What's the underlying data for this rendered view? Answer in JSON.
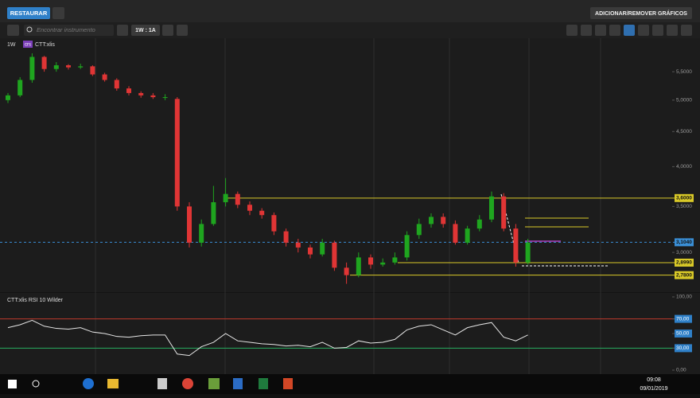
{
  "toolbar": {
    "restore": "RESTAURAR",
    "add_remove": "ADICIONAR/REMOVER GRÁFICOS",
    "search_placeholder": "Encontrar instrumento",
    "period": "1W : 1A"
  },
  "chart_data": [
    {
      "type": "candlestick",
      "interval": "1W",
      "instrument": "CTT:xlis",
      "badge": "crs",
      "open": [
        5.0,
        5.08,
        5.35,
        5.78,
        5.55,
        5.62,
        5.58,
        5.6,
        5.45,
        5.35,
        5.2,
        5.12,
        5.08,
        5.05,
        5.02,
        3.5,
        3.1,
        3.3,
        3.55,
        3.65,
        3.52,
        3.45,
        3.4,
        3.22,
        3.1,
        3.05,
        2.98,
        3.1,
        2.85,
        2.78,
        2.95,
        2.88,
        2.9,
        2.95,
        3.18,
        3.3,
        3.38,
        3.3,
        3.1,
        3.25,
        3.35,
        3.62,
        3.25,
        2.9
      ],
      "high": [
        5.12,
        5.4,
        5.85,
        5.8,
        5.68,
        5.64,
        5.65,
        5.62,
        5.48,
        5.38,
        5.24,
        5.15,
        5.12,
        5.1,
        5.05,
        3.55,
        3.35,
        3.75,
        3.85,
        3.68,
        3.56,
        3.48,
        3.43,
        3.25,
        3.14,
        3.08,
        3.14,
        3.12,
        2.9,
        3.0,
        2.98,
        2.94,
        3.0,
        3.22,
        3.36,
        3.42,
        3.42,
        3.34,
        3.28,
        3.4,
        3.68,
        3.66,
        3.3,
        3.14
      ],
      "low": [
        4.95,
        5.05,
        5.3,
        5.5,
        5.5,
        5.54,
        5.55,
        5.42,
        5.32,
        5.16,
        5.08,
        5.04,
        5.02,
        5.0,
        3.45,
        3.05,
        3.06,
        3.28,
        3.5,
        3.48,
        3.4,
        3.36,
        3.18,
        3.06,
        3.0,
        2.94,
        2.96,
        2.82,
        2.7,
        2.76,
        2.84,
        2.86,
        2.88,
        2.92,
        3.14,
        3.26,
        3.26,
        3.08,
        3.08,
        3.22,
        3.32,
        3.22,
        2.86,
        2.88
      ],
      "close": [
        5.08,
        5.35,
        5.78,
        5.55,
        5.62,
        5.58,
        5.6,
        5.45,
        5.35,
        5.2,
        5.12,
        5.08,
        5.05,
        5.05,
        3.5,
        3.1,
        3.3,
        3.55,
        3.65,
        3.52,
        3.45,
        3.4,
        3.22,
        3.1,
        3.05,
        2.98,
        3.1,
        2.85,
        2.78,
        2.95,
        2.88,
        2.9,
        2.95,
        3.18,
        3.3,
        3.38,
        3.3,
        3.1,
        3.25,
        3.35,
        3.62,
        3.25,
        2.9,
        3.1
      ],
      "up_color": "#1fa51f",
      "down_color": "#e03535",
      "log_scale": true,
      "ylim": [
        2.64,
        5.96
      ],
      "yticks": [
        {
          "value": 5.5,
          "label": "5,5000"
        },
        {
          "value": 5,
          "label": "5,0000"
        },
        {
          "value": 4.5,
          "label": "4,5000"
        },
        {
          "value": 4,
          "label": "4,0000"
        },
        {
          "value": 3.5,
          "label": "3,5000"
        },
        {
          "value": 3,
          "label": "3,0000"
        }
      ],
      "levels": [
        {
          "value": 3.6,
          "label": "3,6000",
          "color": "#d9c928"
        },
        {
          "value": 3.104,
          "label": "3,1040",
          "color": "#3a8fd6"
        },
        {
          "value": 2.899,
          "label": "2,8990",
          "color": "#d9c928"
        },
        {
          "value": 2.78,
          "label": "2,7800",
          "color": "#d9c928"
        }
      ]
    },
    {
      "type": "line",
      "title": "CTT:xlis  RSI 10 Wilder",
      "color": "#e6e6e6",
      "values": [
        58,
        62,
        68,
        60,
        57,
        56,
        58,
        52,
        50,
        46,
        45,
        47,
        48,
        48,
        22,
        20,
        32,
        38,
        50,
        40,
        38,
        36,
        35,
        33,
        34,
        32,
        38,
        30,
        31,
        40,
        37,
        38,
        42,
        55,
        60,
        62,
        55,
        48,
        58,
        62,
        65,
        45,
        40,
        48
      ],
      "ylim": [
        0,
        100
      ],
      "yticks": [
        {
          "value": 100,
          "label": "100,00"
        },
        {
          "value": 70,
          "label": "70,00"
        },
        {
          "value": 50,
          "label": "50,00"
        },
        {
          "value": 30,
          "label": "30,00"
        },
        {
          "value": 0,
          "label": "0,00"
        }
      ],
      "levels": [
        {
          "value": 70,
          "color": "#c0392b"
        },
        {
          "value": 30,
          "color": "#27ae60"
        }
      ]
    }
  ],
  "taskbar": {
    "time": "09:08",
    "date": "09/01/2019"
  }
}
